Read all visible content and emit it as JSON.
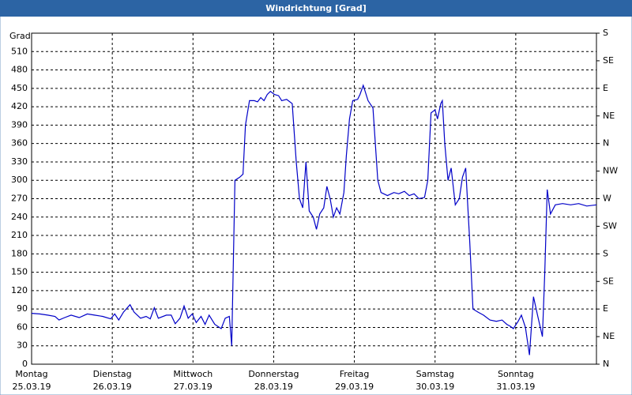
{
  "chart_data": {
    "type": "line",
    "title": "Windrichtung [Grad]",
    "y_label": "Grad",
    "xlim": [
      0,
      7
    ],
    "xticks": [
      {
        "value": 0,
        "label": "Montag",
        "date": "25.03.19"
      },
      {
        "value": 1,
        "label": "Dienstag",
        "date": "26.03.19"
      },
      {
        "value": 2,
        "label": "Mittwoch",
        "date": "27.03.19"
      },
      {
        "value": 3,
        "label": "Donnerstag",
        "date": "28.03.19"
      },
      {
        "value": 4,
        "label": "Freitag",
        "date": "29.03.19"
      },
      {
        "value": 5,
        "label": "Samstag",
        "date": "30.03.19"
      },
      {
        "value": 6,
        "label": "Sonntag",
        "date": "31.03.19"
      },
      7
    ],
    "ylim": [
      0,
      540
    ],
    "yticks": [
      0,
      30,
      60,
      90,
      120,
      150,
      180,
      210,
      240,
      270,
      300,
      330,
      360,
      390,
      420,
      450,
      480,
      510
    ],
    "y2lim": [
      0,
      540
    ],
    "y2ticks": [
      {
        "value": 0,
        "label": "N"
      },
      {
        "value": 45,
        "label": "NE"
      },
      {
        "value": 90,
        "label": "E"
      },
      {
        "value": 135,
        "label": "SE"
      },
      {
        "value": 180,
        "label": "S"
      },
      {
        "value": 225,
        "label": "SW"
      },
      {
        "value": 270,
        "label": "W"
      },
      {
        "value": 315,
        "label": "NW"
      },
      {
        "value": 360,
        "label": "N"
      },
      {
        "value": 405,
        "label": "NE"
      },
      {
        "value": 450,
        "label": "E"
      },
      {
        "value": 495,
        "label": "SE"
      },
      {
        "value": 540,
        "label": "S"
      }
    ],
    "grid": true,
    "series": [
      {
        "color": "#0000c8",
        "x": [
          0,
          0.1,
          0.2,
          0.29,
          0.34,
          0.41,
          0.49,
          0.59,
          0.69,
          0.78,
          0.88,
          0.98,
          1.03,
          1.08,
          1.14,
          1.22,
          1.27,
          1.35,
          1.42,
          1.47,
          1.52,
          1.57,
          1.67,
          1.73,
          1.78,
          1.84,
          1.89,
          1.94,
          1.99,
          2.04,
          2.1,
          2.15,
          2.2,
          2.27,
          2.35,
          2.4,
          2.45,
          2.48,
          2.52,
          2.58,
          2.62,
          2.65,
          2.7,
          2.76,
          2.8,
          2.84,
          2.88,
          2.92,
          2.96,
          3.01,
          3.06,
          3.1,
          3.16,
          3.23,
          3.28,
          3.32,
          3.36,
          3.4,
          3.44,
          3.49,
          3.53,
          3.57,
          3.62,
          3.66,
          3.7,
          3.74,
          3.78,
          3.82,
          3.87,
          3.9,
          3.94,
          3.98,
          4.04,
          4.07,
          4.11,
          4.17,
          4.23,
          4.29,
          4.33,
          4.41,
          4.49,
          4.55,
          4.62,
          4.68,
          4.74,
          4.8,
          4.87,
          4.91,
          4.95,
          5.0,
          5.03,
          5.07,
          5.09,
          5.12,
          5.16,
          5.2,
          5.25,
          5.3,
          5.34,
          5.38,
          5.43,
          5.47,
          5.53,
          5.6,
          5.68,
          5.76,
          5.83,
          5.89,
          5.93,
          5.97,
          6.03,
          6.07,
          6.12,
          6.17,
          6.22,
          6.27,
          6.33,
          6.36,
          6.39,
          6.43,
          6.49,
          6.58,
          6.68,
          6.78,
          6.88,
          7.0
        ],
        "values": [
          83,
          82,
          80,
          78,
          72,
          76,
          80,
          76,
          82,
          80,
          78,
          74,
          82,
          72,
          85,
          97,
          85,
          75,
          78,
          74,
          92,
          75,
          80,
          80,
          66,
          75,
          95,
          75,
          82,
          68,
          78,
          65,
          80,
          65,
          58,
          75,
          78,
          30,
          300,
          305,
          310,
          390,
          430,
          430,
          428,
          435,
          430,
          440,
          445,
          440,
          438,
          430,
          432,
          425,
          330,
          270,
          255,
          330,
          250,
          240,
          220,
          245,
          255,
          290,
          270,
          240,
          255,
          245,
          280,
          340,
          400,
          430,
          432,
          440,
          455,
          430,
          418,
          300,
          280,
          275,
          280,
          278,
          282,
          275,
          278,
          270,
          272,
          300,
          410,
          415,
          400,
          425,
          430,
          360,
          300,
          320,
          260,
          270,
          305,
          320,
          200,
          90,
          85,
          80,
          72,
          70,
          72,
          65,
          62,
          58,
          70,
          80,
          60,
          15,
          110,
          80,
          45,
          150,
          285,
          245,
          260,
          262,
          260,
          262,
          258,
          260
        ]
      }
    ]
  }
}
